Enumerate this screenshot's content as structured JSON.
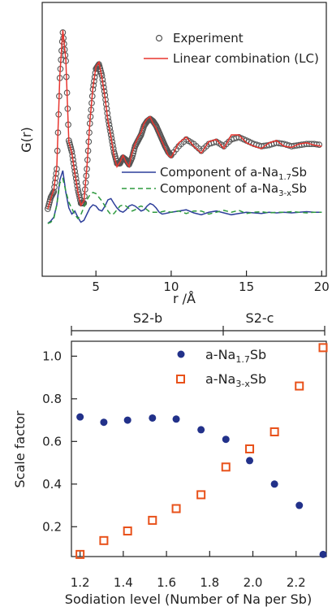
{
  "chart_data": [
    {
      "type": "line",
      "ylabel": "G(r)",
      "xlabel": "r /Å",
      "xlim": [
        1.7,
        20.2
      ],
      "xticks": [
        5,
        10,
        15,
        20
      ],
      "xtick_labels": [
        "5",
        "10",
        "15",
        "20"
      ],
      "grid": false,
      "legend_top": [
        {
          "label": "Experiment",
          "marker": "open-circle",
          "color": "#555555"
        },
        {
          "label": "Linear combination (LC)",
          "marker": "line",
          "color": "#e8352f"
        }
      ],
      "legend_bottom": [
        {
          "label_main": "Component of a-Na",
          "label_sub": "1.7",
          "label_tail": "Sb",
          "color": "#2d3e9a",
          "style": "solid"
        },
        {
          "label_main": "Component of a-Na",
          "label_sub": "3-x",
          "label_tail": "Sb",
          "color": "#2e9a3e",
          "style": "dashed"
        }
      ],
      "series": [
        {
          "name": "Experiment",
          "color": "#555555",
          "kind": "points",
          "x": [
            1.8,
            2.0,
            2.2,
            2.4,
            2.6,
            2.8,
            3.0,
            3.2,
            3.4,
            3.6,
            3.8,
            4.0,
            4.2,
            4.4,
            4.6,
            4.8,
            5.0,
            5.2,
            5.4,
            5.6,
            5.8,
            6.0,
            6.2,
            6.4,
            6.6,
            6.8,
            7.0,
            7.2,
            7.4,
            7.6,
            7.8,
            8.0,
            8.2,
            8.4,
            8.6,
            8.8,
            9.0,
            9.2,
            9.4,
            9.6,
            9.8,
            10.0,
            10.5,
            11.0,
            11.5,
            12.0,
            12.5,
            13.0,
            13.5,
            14.0,
            14.5,
            15.0,
            15.5,
            16.0,
            16.5,
            17.0,
            17.5,
            18.0,
            18.5,
            19.0,
            19.5,
            20.0
          ],
          "y": [
            -0.55,
            -0.45,
            -0.4,
            -0.2,
            0.6,
            1.0,
            0.75,
            0.05,
            -0.05,
            -0.22,
            -0.38,
            -0.5,
            -0.5,
            -0.2,
            0.2,
            0.5,
            0.68,
            0.72,
            0.62,
            0.45,
            0.25,
            0.1,
            -0.05,
            -0.15,
            -0.15,
            -0.1,
            -0.12,
            -0.16,
            -0.1,
            0.0,
            0.05,
            0.1,
            0.18,
            0.22,
            0.24,
            0.22,
            0.18,
            0.12,
            0.06,
            0.0,
            -0.05,
            -0.08,
            0.0,
            0.06,
            0.02,
            -0.04,
            0.02,
            0.04,
            0.0,
            0.06,
            0.08,
            0.05,
            0.02,
            0.0,
            0.01,
            0.03,
            0.02,
            0.0,
            0.01,
            0.02,
            0.02,
            0.01
          ]
        },
        {
          "name": "Linear combination (LC)",
          "color": "#e8352f",
          "kind": "line",
          "x": [
            1.8,
            2.0,
            2.2,
            2.4,
            2.6,
            2.8,
            3.0,
            3.2,
            3.4,
            3.6,
            3.8,
            4.0,
            4.2,
            4.4,
            4.6,
            4.8,
            5.0,
            5.2,
            5.4,
            5.6,
            5.8,
            6.0,
            6.2,
            6.4,
            6.6,
            6.8,
            7.0,
            7.2,
            7.4,
            7.6,
            7.8,
            8.0,
            8.2,
            8.4,
            8.6,
            8.8,
            9.0,
            9.2,
            9.4,
            9.6,
            9.8,
            10.0,
            10.5,
            11.0,
            11.5,
            12.0,
            12.5,
            13.0,
            13.5,
            14.0,
            14.5,
            15.0,
            15.5,
            16.0,
            16.5,
            17.0,
            17.5,
            18.0,
            18.5,
            19.0,
            19.5,
            20.0
          ],
          "y": [
            -0.55,
            -0.46,
            -0.38,
            -0.18,
            0.62,
            1.02,
            0.76,
            0.04,
            -0.06,
            -0.24,
            -0.4,
            -0.52,
            -0.48,
            -0.18,
            0.22,
            0.52,
            0.7,
            0.74,
            0.6,
            0.43,
            0.22,
            0.08,
            -0.08,
            -0.18,
            -0.14,
            -0.08,
            -0.14,
            -0.18,
            -0.06,
            0.02,
            0.08,
            0.12,
            0.2,
            0.24,
            0.26,
            0.2,
            0.16,
            0.1,
            0.04,
            -0.02,
            -0.08,
            -0.1,
            0.03,
            0.08,
            0.0,
            -0.06,
            0.04,
            0.06,
            -0.02,
            0.1,
            0.1,
            0.03,
            0.0,
            -0.02,
            0.03,
            0.05,
            0.0,
            -0.01,
            0.02,
            0.03,
            0.01,
            0.0
          ]
        },
        {
          "name": "Component of a-Na1.7Sb",
          "color": "#2d3e9a",
          "kind": "line",
          "x": [
            1.8,
            2.0,
            2.2,
            2.4,
            2.6,
            2.8,
            3.0,
            3.2,
            3.4,
            3.6,
            3.8,
            4.0,
            4.2,
            4.4,
            4.6,
            4.8,
            5.0,
            5.2,
            5.4,
            5.6,
            5.8,
            6.0,
            6.2,
            6.4,
            6.6,
            6.8,
            7.0,
            7.2,
            7.4,
            7.6,
            7.8,
            8.0,
            8.2,
            8.4,
            8.6,
            8.8,
            9.0,
            9.2,
            9.4,
            9.6,
            9.8,
            10.0,
            10.5,
            11.0,
            11.5,
            12.0,
            12.5,
            13.0,
            13.5,
            14.0,
            14.5,
            15.0,
            15.5,
            16.0,
            16.5,
            17.0,
            17.5,
            18.0,
            18.5,
            19.0,
            19.5,
            20.0
          ],
          "y": [
            -2.0,
            -1.96,
            -1.9,
            -1.7,
            -1.3,
            -1.15,
            -1.5,
            -1.75,
            -1.85,
            -1.8,
            -1.9,
            -1.98,
            -1.95,
            -1.85,
            -1.75,
            -1.7,
            -1.72,
            -1.78,
            -1.8,
            -1.72,
            -1.62,
            -1.6,
            -1.68,
            -1.75,
            -1.8,
            -1.82,
            -1.78,
            -1.72,
            -1.7,
            -1.72,
            -1.76,
            -1.8,
            -1.78,
            -1.72,
            -1.68,
            -1.7,
            -1.75,
            -1.82,
            -1.85,
            -1.84,
            -1.83,
            -1.82,
            -1.8,
            -1.78,
            -1.83,
            -1.86,
            -1.82,
            -1.8,
            -1.83,
            -1.86,
            -1.84,
            -1.82,
            -1.83,
            -1.84,
            -1.82,
            -1.83,
            -1.82,
            -1.83,
            -1.82,
            -1.81,
            -1.82,
            -1.82
          ]
        },
        {
          "name": "Component of a-Na3-xSb",
          "color": "#2e9a3e",
          "kind": "dashed",
          "x": [
            1.8,
            2.0,
            2.2,
            2.4,
            2.6,
            2.8,
            3.0,
            3.2,
            3.4,
            3.6,
            3.8,
            4.0,
            4.2,
            4.4,
            4.6,
            4.8,
            5.0,
            5.2,
            5.4,
            5.6,
            5.8,
            6.0,
            6.2,
            6.4,
            6.6,
            6.8,
            7.0,
            7.2,
            7.4,
            7.6,
            7.8,
            8.0,
            8.2,
            8.4,
            8.6,
            8.8,
            9.0,
            9.2,
            9.4,
            9.6,
            9.8,
            10.0,
            10.5,
            11.0,
            11.5,
            12.0,
            12.5,
            13.0,
            13.5,
            14.0,
            14.5,
            15.0,
            15.5,
            16.0,
            16.5,
            17.0,
            17.5,
            18.0,
            18.5,
            19.0,
            19.5,
            20.0
          ],
          "y": [
            -2.0,
            -1.98,
            -1.92,
            -1.7,
            -1.35,
            -1.28,
            -1.48,
            -1.66,
            -1.76,
            -1.86,
            -1.92,
            -1.86,
            -1.74,
            -1.62,
            -1.54,
            -1.5,
            -1.52,
            -1.58,
            -1.64,
            -1.72,
            -1.8,
            -1.86,
            -1.84,
            -1.78,
            -1.72,
            -1.7,
            -1.72,
            -1.76,
            -1.8,
            -1.78,
            -1.74,
            -1.72,
            -1.74,
            -1.78,
            -1.82,
            -1.82,
            -1.82,
            -1.82,
            -1.81,
            -1.8,
            -1.81,
            -1.82,
            -1.8,
            -1.84,
            -1.8,
            -1.8,
            -1.85,
            -1.82,
            -1.79,
            -1.82,
            -1.79,
            -1.84,
            -1.82,
            -1.81,
            -1.83,
            -1.82,
            -1.82,
            -1.81,
            -1.82,
            -1.83,
            -1.82,
            -1.82
          ]
        }
      ]
    },
    {
      "type": "scatter",
      "xlabel": "Sodiation level (Number of Na per Sb)",
      "ylabel": "Scale factor",
      "xlim": [
        1.16,
        2.34
      ],
      "ylim": [
        0.06,
        1.07
      ],
      "xticks": [
        1.2,
        1.4,
        1.6,
        1.8,
        2.0,
        2.2
      ],
      "xtick_labels": [
        "1.2",
        "1.4",
        "1.6",
        "1.8",
        "2.0",
        "2.2"
      ],
      "yticks": [
        0.2,
        0.4,
        0.6,
        0.8,
        1.0
      ],
      "ytick_labels": [
        "0.2",
        "0.4",
        "0.6",
        "0.8",
        "1.0"
      ],
      "grid": false,
      "regions": [
        {
          "label": "S2-b",
          "x_start": 1.16,
          "x_end": 1.875
        },
        {
          "label": "S2-c",
          "x_start": 1.875,
          "x_end": 2.34
        }
      ],
      "legend": [
        {
          "label_main": "a-Na",
          "label_sub": "1.7",
          "label_tail": "Sb",
          "marker": "filled-circle",
          "color": "#22318a"
        },
        {
          "label_main": "a-Na",
          "label_sub": "3-x",
          "label_tail": "Sb",
          "marker": "open-square",
          "color": "#e8511a"
        }
      ],
      "series": [
        {
          "name": "a-Na1.7Sb",
          "marker": "filled-circle",
          "color": "#22318a",
          "x": [
            1.2,
            1.31,
            1.42,
            1.535,
            1.645,
            1.76,
            1.875,
            1.985,
            2.1,
            2.215,
            2.325
          ],
          "y": [
            0.715,
            0.69,
            0.7,
            0.71,
            0.705,
            0.655,
            0.61,
            0.51,
            0.4,
            0.3,
            0.07
          ]
        },
        {
          "name": "a-Na3-xSb",
          "marker": "open-square",
          "color": "#e8511a",
          "x": [
            1.2,
            1.31,
            1.42,
            1.535,
            1.645,
            1.76,
            1.875,
            1.985,
            2.1,
            2.215,
            2.325
          ],
          "y": [
            0.07,
            0.135,
            0.18,
            0.23,
            0.285,
            0.35,
            0.48,
            0.565,
            0.645,
            0.86,
            1.04
          ]
        }
      ]
    }
  ]
}
